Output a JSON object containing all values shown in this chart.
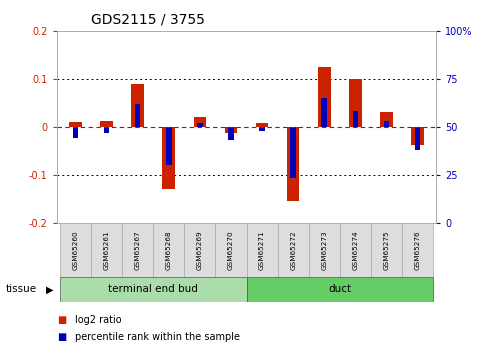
{
  "title": "GDS2115 / 3755",
  "samples": [
    "GSM65260",
    "GSM65261",
    "GSM65267",
    "GSM65268",
    "GSM65269",
    "GSM65270",
    "GSM65271",
    "GSM65272",
    "GSM65273",
    "GSM65274",
    "GSM65275",
    "GSM65276"
  ],
  "log2_ratio": [
    0.01,
    0.012,
    0.09,
    -0.13,
    0.02,
    -0.012,
    0.008,
    -0.155,
    0.125,
    0.1,
    0.03,
    -0.038
  ],
  "percentile": [
    44,
    47,
    62,
    30,
    52,
    43,
    48,
    23,
    65,
    58,
    53,
    38
  ],
  "ylim_left": [
    -0.2,
    0.2
  ],
  "ylim_right": [
    0,
    100
  ],
  "left_ticks": [
    -0.2,
    -0.1,
    0.0,
    0.1,
    0.2
  ],
  "right_ticks": [
    0,
    25,
    50,
    75,
    100
  ],
  "left_tick_labels": [
    "-0.2",
    "-0.1",
    "0",
    "0.1",
    "0.2"
  ],
  "right_tick_labels": [
    "0",
    "25",
    "50",
    "75",
    "100%"
  ],
  "groups": [
    {
      "label": "terminal end bud",
      "start": 0,
      "end": 6,
      "color": "#aaddaa"
    },
    {
      "label": "duct",
      "start": 6,
      "end": 12,
      "color": "#66cc66"
    }
  ],
  "tissue_label": "tissue",
  "bar_width": 0.4,
  "red_color": "#cc2200",
  "blue_color": "#0000bb",
  "plot_bg": "#ffffff",
  "zero_line_color": "#cc0000",
  "legend_red": "log2 ratio",
  "legend_blue": "percentile rank within the sample"
}
